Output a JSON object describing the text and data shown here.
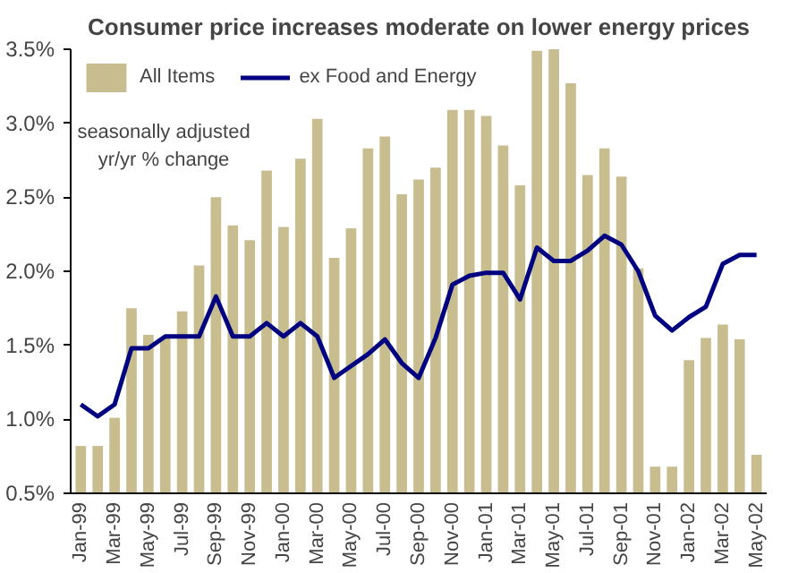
{
  "chart_data": {
    "type": "bar",
    "title": "Consumer price increases moderate on lower energy prices",
    "categories": [
      "Jan-99",
      null,
      "Mar-99",
      null,
      "May-99",
      null,
      "Jul-99",
      null,
      "Sep-99",
      null,
      "Nov-99",
      null,
      "Jan-00",
      null,
      "Mar-00",
      null,
      "May-00",
      null,
      "Jul-00",
      null,
      "Sep-00",
      null,
      "Nov-00",
      null,
      "Jan-01",
      null,
      "Mar-01",
      null,
      "May-01",
      null,
      "Jul-01",
      null,
      "Sep-01",
      null,
      "Nov-01",
      null,
      "Jan-02",
      null,
      "Mar-02",
      null,
      "May-02"
    ],
    "series": [
      {
        "name": "All Items",
        "color": "#c8bd8f",
        "values": [
          0.82,
          0.82,
          1.01,
          1.75,
          1.57,
          1.55,
          1.73,
          2.04,
          2.5,
          2.31,
          2.21,
          2.68,
          2.3,
          2.76,
          3.03,
          2.09,
          2.29,
          2.83,
          2.91,
          2.52,
          2.62,
          2.7,
          3.09,
          3.09,
          3.05,
          2.85,
          2.58,
          3.49,
          3.5,
          3.27,
          2.65,
          2.83,
          2.64,
          2.02,
          0.68,
          0.68,
          1.4,
          1.55,
          1.64,
          1.54,
          0.76
        ]
      },
      {
        "name": "ex Food and Energy",
        "type": "line",
        "color": "#000080",
        "values": [
          1.1,
          1.02,
          1.1,
          1.48,
          1.48,
          1.56,
          1.56,
          1.56,
          1.83,
          1.56,
          1.56,
          1.65,
          1.56,
          1.65,
          1.56,
          1.28,
          1.36,
          1.44,
          1.54,
          1.38,
          1.28,
          1.55,
          1.91,
          1.97,
          1.99,
          1.99,
          1.81,
          2.16,
          2.07,
          2.07,
          2.14,
          2.24,
          2.18,
          2.0,
          1.7,
          1.6,
          1.69,
          1.76,
          2.05,
          2.11,
          2.11
        ]
      }
    ],
    "ylim": [
      0.5,
      3.5
    ],
    "yticks": [
      {
        "value": 0.5,
        "label": "0.5%"
      },
      {
        "value": 1.0,
        "label": "1.0%"
      },
      {
        "value": 1.5,
        "label": "1.5%"
      },
      {
        "value": 2.0,
        "label": "2.0%"
      },
      {
        "value": 2.5,
        "label": "2.5%"
      },
      {
        "value": 3.0,
        "label": "3.0%"
      },
      {
        "value": 3.5,
        "label": "3.5%"
      }
    ],
    "annotations": [
      "seasonally adjusted\nyr/yr % change"
    ],
    "legend": "top left",
    "grid": false,
    "marker": "none",
    "line_style": "solid"
  }
}
